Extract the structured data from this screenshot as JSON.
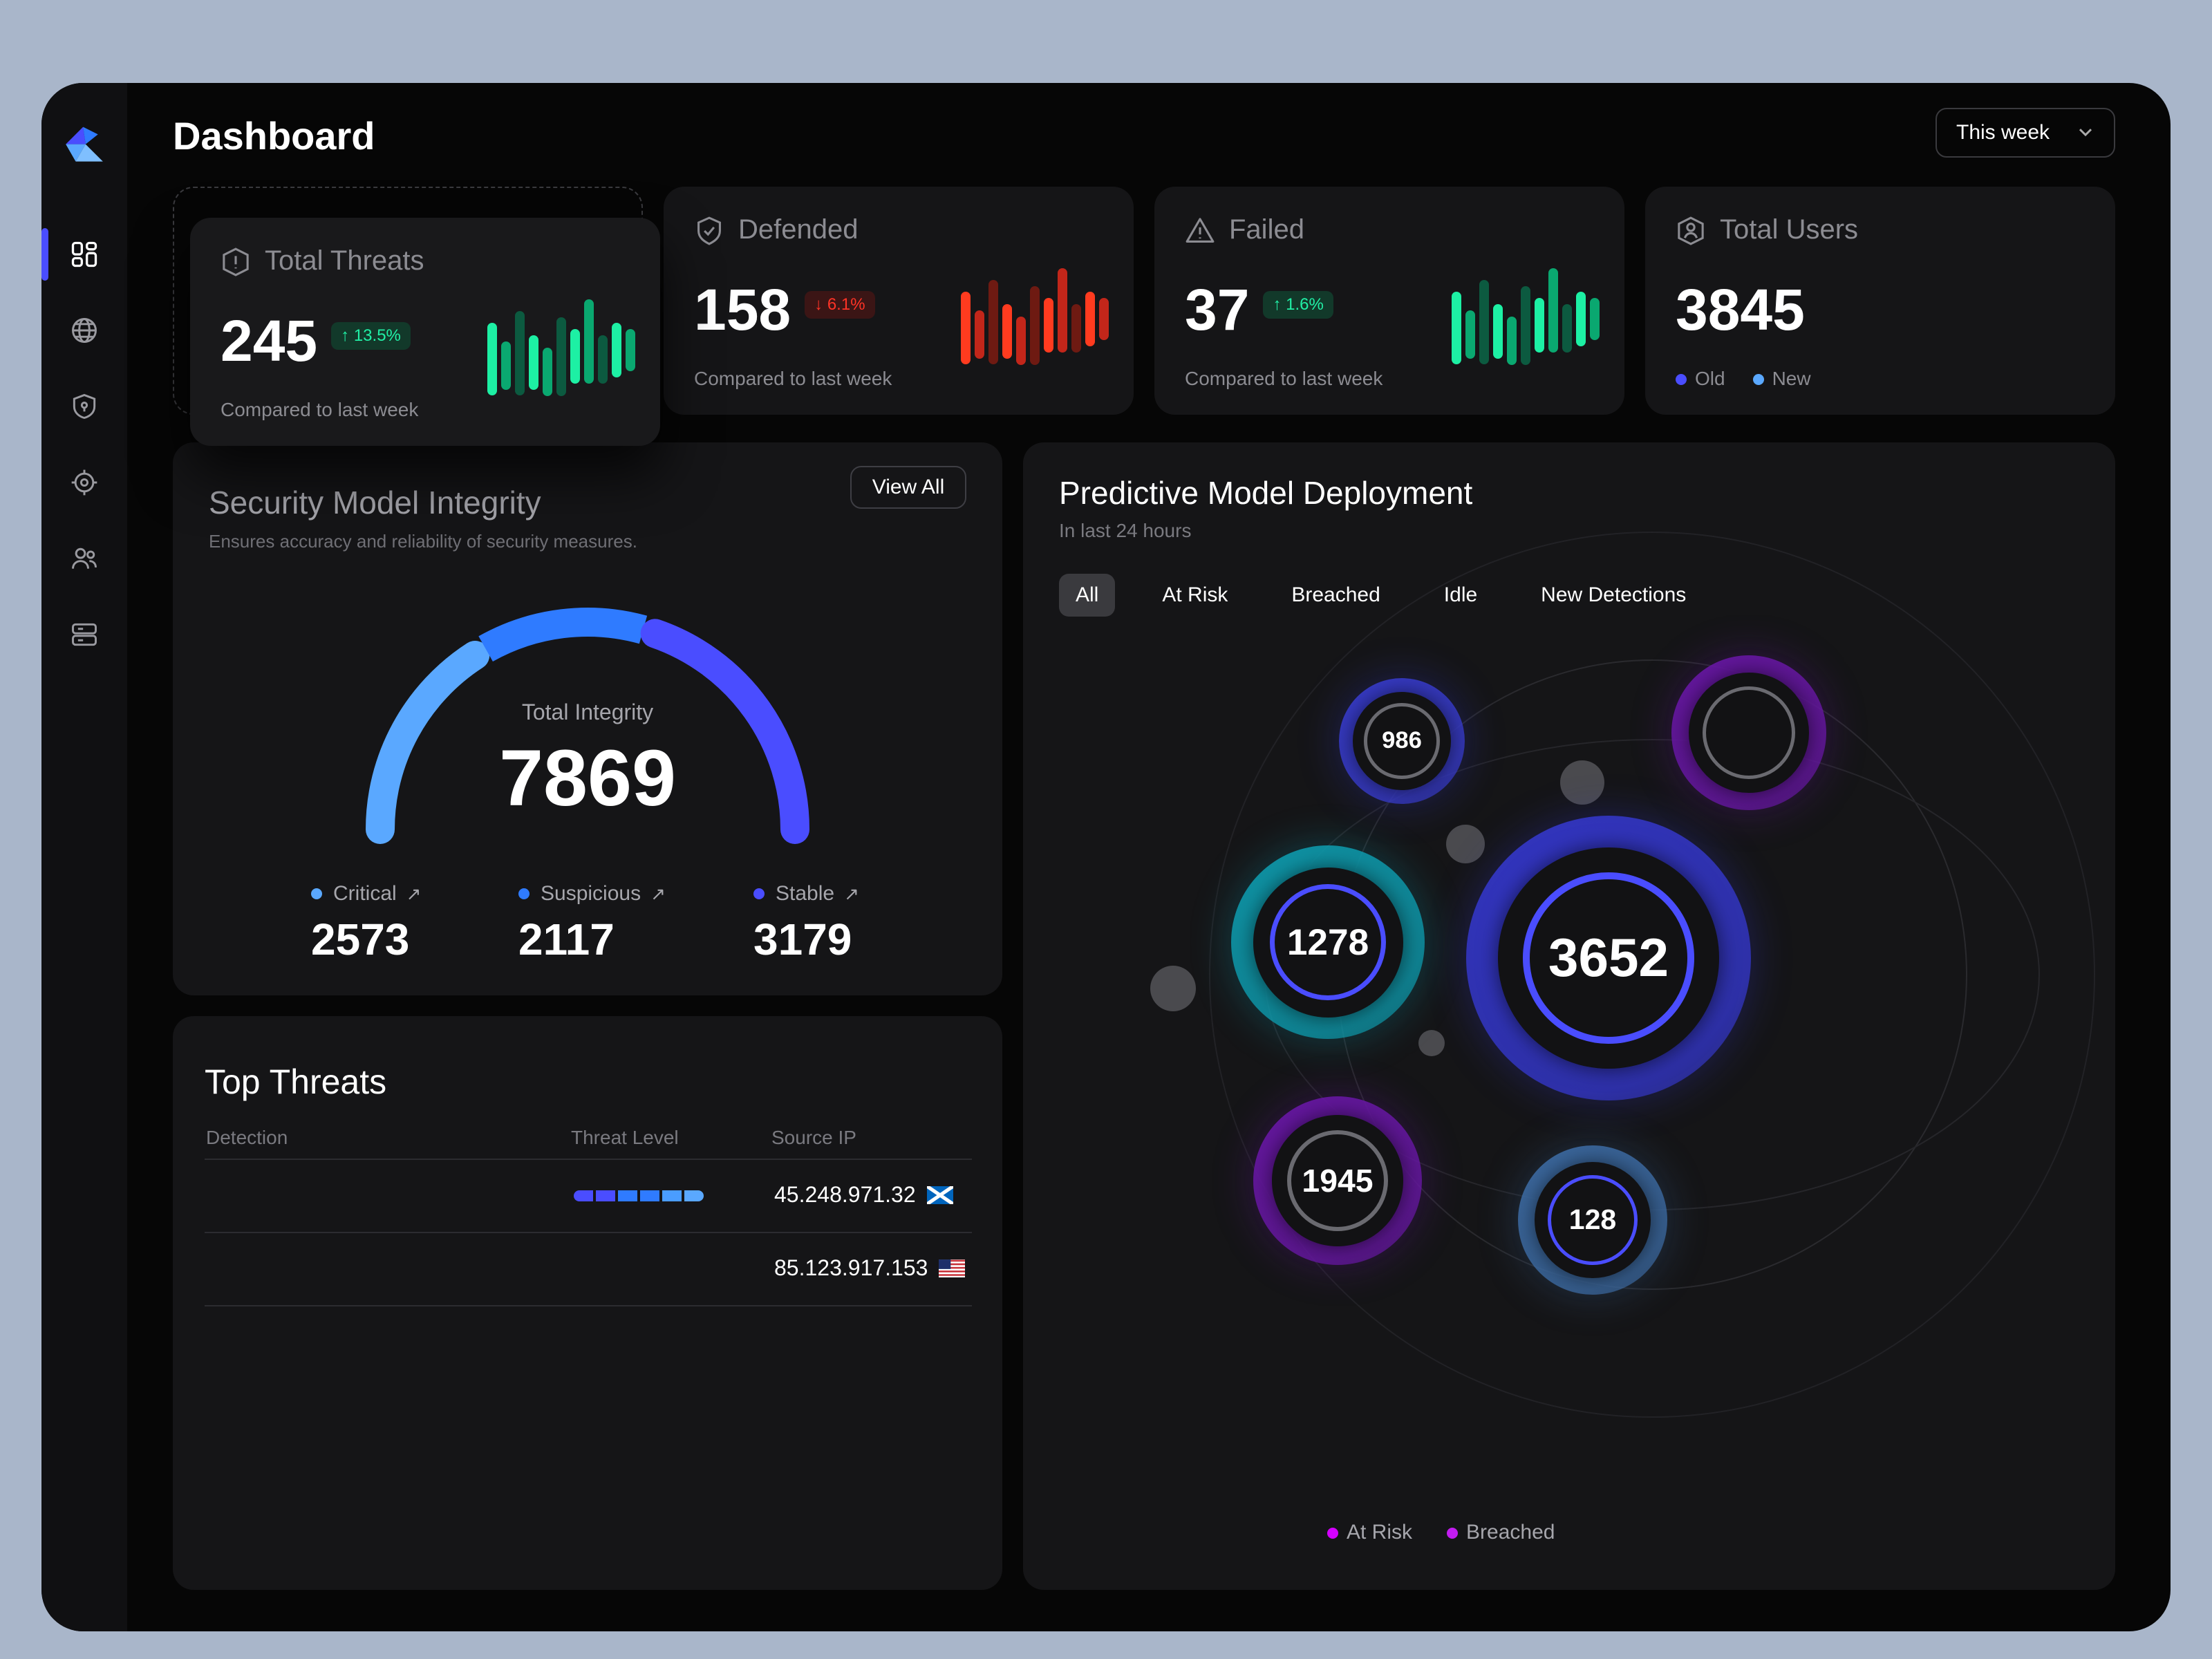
{
  "header": {
    "title": "Dashboard",
    "period": "This week"
  },
  "sidebar": {
    "items": [
      {
        "icon": "grid-icon",
        "active": true
      },
      {
        "icon": "globe-icon"
      },
      {
        "icon": "shield-icon"
      },
      {
        "icon": "target-icon"
      },
      {
        "icon": "users-icon"
      },
      {
        "icon": "server-icon"
      }
    ]
  },
  "stats": [
    {
      "title": "Total Threats",
      "value": "245",
      "change": "13.5%",
      "direction": "up",
      "compare": "Compared to last week",
      "icon": "alert-hexagon-icon"
    },
    {
      "title": "Defended",
      "value": "158",
      "change": "6.1%",
      "direction": "down",
      "compare": "Compared to last week",
      "icon": "shield-check-icon"
    },
    {
      "title": "Failed",
      "value": "37",
      "change": "1.6%",
      "direction": "up",
      "compare": "Compared to last week",
      "icon": "warning-triangle-icon"
    },
    {
      "title": "Total Users",
      "value": "3845",
      "legend": [
        "Old",
        "New"
      ],
      "legend_colors": [
        "#4a4dff",
        "#5aa8ff"
      ],
      "icon": "user-hexagon-icon"
    }
  ],
  "integrity": {
    "title": "Security Model Integrity",
    "subtitle": "Ensures accuracy and reliability of security measures.",
    "view_all": "View All",
    "total_label": "Total Integrity",
    "total": "7869",
    "segments": [
      {
        "label": "Critical",
        "value": 2573,
        "display": "2573",
        "color": "#5aa8ff"
      },
      {
        "label": "Suspicious",
        "value": 2117,
        "display": "2117",
        "color": "#2f7bff"
      },
      {
        "label": "Stable",
        "value": 3179,
        "display": "3179",
        "color": "#4a4dff"
      }
    ]
  },
  "deployment": {
    "title": "Predictive Model Deployment",
    "subtitle": "In last 24 hours",
    "tabs": [
      "All",
      "At Risk",
      "Breached",
      "Idle",
      "New Detections"
    ],
    "active_tab": "All",
    "bubbles": [
      {
        "value": "986",
        "color": "#3a3ed6"
      },
      {
        "value": "1278",
        "color": "#0e9db0"
      },
      {
        "value": "1945",
        "color": "#6b17aa"
      },
      {
        "value": "3652",
        "color": "#3437cc"
      },
      {
        "value": "128",
        "color": "#3e6ea8"
      },
      {
        "value": "",
        "color": "#6b17aa"
      }
    ],
    "legend": [
      {
        "label": "At Risk",
        "color": "#d400ff"
      },
      {
        "label": "Breached",
        "color": "#c21cf0"
      }
    ]
  },
  "threats": {
    "title": "Top Threats",
    "columns": [
      "Detection",
      "Threat Level",
      "Source IP"
    ],
    "rows": [
      {
        "level": 6,
        "level_max": 6,
        "ip": "45.248.971.32",
        "flag": "scotland-flag-icon"
      },
      {
        "ip": "85.123.917.153",
        "flag": "us-flag-icon"
      }
    ]
  }
}
